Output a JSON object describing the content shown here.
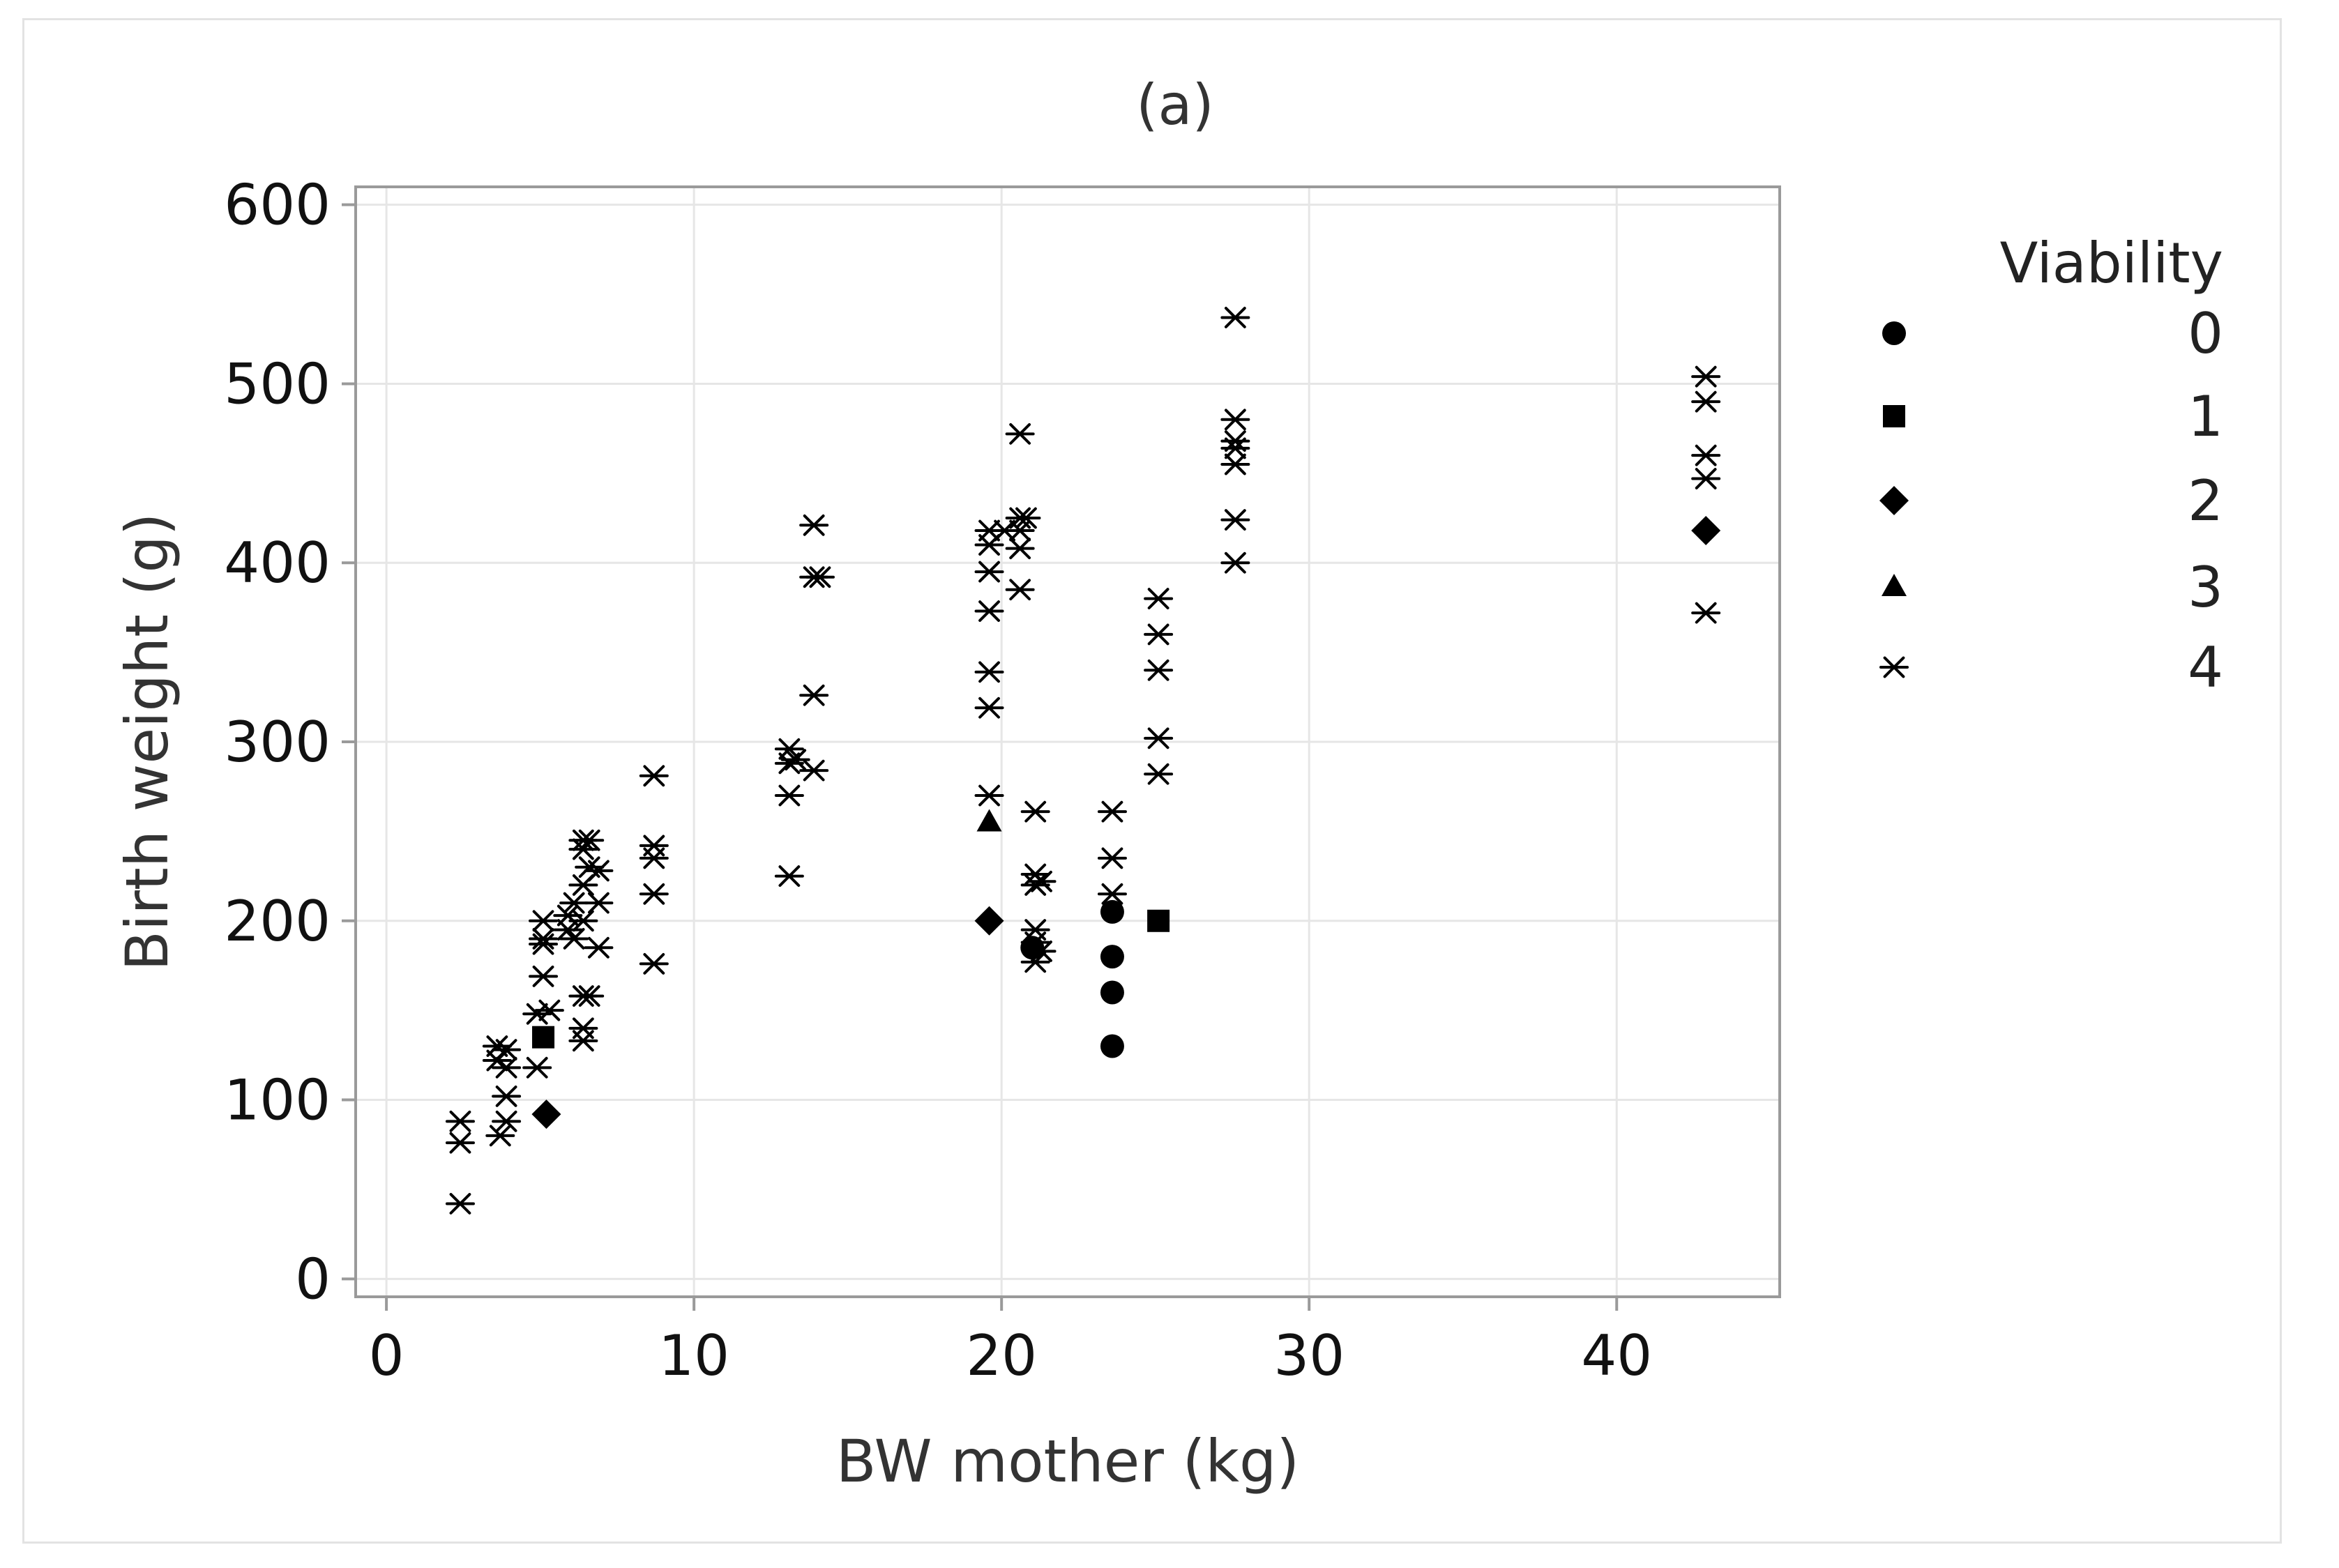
{
  "chart_data": {
    "type": "scatter",
    "title": "(a)",
    "xlabel": "BW mother (kg)",
    "ylabel": "Birth weight (g)",
    "xlim": [
      -1,
      45.3
    ],
    "ylim": [
      -10,
      610
    ],
    "xticks": [
      0,
      10,
      20,
      30,
      40
    ],
    "yticks": [
      0,
      100,
      200,
      300,
      400,
      500,
      600
    ],
    "grid": true,
    "legend": {
      "title": "Viability",
      "position": "right"
    },
    "colors": {
      "marker": "#000000",
      "grid": "#e6e6e6",
      "frame": "#9a9a9a",
      "text": "#222222"
    },
    "series": [
      {
        "name": "0",
        "marker": "circle",
        "points": [
          [
            23.6,
            205
          ],
          [
            23.6,
            180
          ],
          [
            23.6,
            160
          ],
          [
            23.6,
            130
          ],
          [
            21.0,
            185
          ]
        ]
      },
      {
        "name": "1",
        "marker": "square",
        "points": [
          [
            5.1,
            135
          ],
          [
            25.1,
            200
          ]
        ]
      },
      {
        "name": "2",
        "marker": "diamond",
        "points": [
          [
            5.2,
            92
          ],
          [
            19.6,
            200
          ],
          [
            42.9,
            418
          ]
        ]
      },
      {
        "name": "3",
        "marker": "triangle",
        "points": [
          [
            19.6,
            255
          ]
        ]
      },
      {
        "name": "4",
        "marker": "asterisk",
        "points": [
          [
            2.4,
            88
          ],
          [
            2.4,
            76
          ],
          [
            2.4,
            42
          ],
          [
            3.6,
            130
          ],
          [
            3.6,
            122
          ],
          [
            3.9,
            128
          ],
          [
            3.9,
            118
          ],
          [
            3.9,
            102
          ],
          [
            3.7,
            80
          ],
          [
            3.9,
            88
          ],
          [
            4.9,
            148
          ],
          [
            4.9,
            118
          ],
          [
            5.1,
            200
          ],
          [
            5.1,
            190
          ],
          [
            5.1,
            187
          ],
          [
            5.1,
            169
          ],
          [
            5.3,
            150
          ],
          [
            5.9,
            195
          ],
          [
            5.9,
            203
          ],
          [
            6.1,
            210
          ],
          [
            6.1,
            190
          ],
          [
            6.4,
            245
          ],
          [
            6.4,
            240
          ],
          [
            6.4,
            220
          ],
          [
            6.4,
            200
          ],
          [
            6.4,
            158
          ],
          [
            6.4,
            140
          ],
          [
            6.4,
            133
          ],
          [
            6.6,
            245
          ],
          [
            6.6,
            230
          ],
          [
            6.6,
            158
          ],
          [
            6.9,
            228
          ],
          [
            6.9,
            210
          ],
          [
            6.9,
            185
          ],
          [
            8.7,
            281
          ],
          [
            8.7,
            242
          ],
          [
            8.7,
            235
          ],
          [
            8.7,
            215
          ],
          [
            8.7,
            176
          ],
          [
            13.1,
            296
          ],
          [
            13.1,
            288
          ],
          [
            13.1,
            270
          ],
          [
            13.1,
            225
          ],
          [
            13.3,
            290
          ],
          [
            13.9,
            421
          ],
          [
            13.9,
            392
          ],
          [
            14.1,
            392
          ],
          [
            13.9,
            326
          ],
          [
            13.9,
            284
          ],
          [
            19.6,
            418
          ],
          [
            19.6,
            410
          ],
          [
            19.6,
            395
          ],
          [
            19.6,
            373
          ],
          [
            19.6,
            339
          ],
          [
            19.6,
            319
          ],
          [
            19.6,
            270
          ],
          [
            20.1,
            418
          ],
          [
            20.6,
            472
          ],
          [
            20.6,
            425
          ],
          [
            20.6,
            418
          ],
          [
            20.6,
            408
          ],
          [
            20.6,
            385
          ],
          [
            20.8,
            425
          ],
          [
            21.1,
            261
          ],
          [
            21.1,
            226
          ],
          [
            21.1,
            220
          ],
          [
            21.1,
            195
          ],
          [
            21.1,
            188
          ],
          [
            21.1,
            177
          ],
          [
            21.3,
            222
          ],
          [
            21.3,
            183
          ],
          [
            23.6,
            261
          ],
          [
            23.6,
            235
          ],
          [
            23.6,
            215
          ],
          [
            25.1,
            380
          ],
          [
            25.1,
            360
          ],
          [
            25.1,
            340
          ],
          [
            25.1,
            302
          ],
          [
            25.1,
            282
          ],
          [
            27.6,
            537
          ],
          [
            27.6,
            480
          ],
          [
            27.6,
            468
          ],
          [
            27.6,
            464
          ],
          [
            27.6,
            455
          ],
          [
            27.6,
            424
          ],
          [
            27.6,
            400
          ],
          [
            42.9,
            504
          ],
          [
            42.9,
            490
          ],
          [
            42.9,
            460
          ],
          [
            42.9,
            447
          ],
          [
            42.9,
            372
          ]
        ]
      }
    ]
  }
}
